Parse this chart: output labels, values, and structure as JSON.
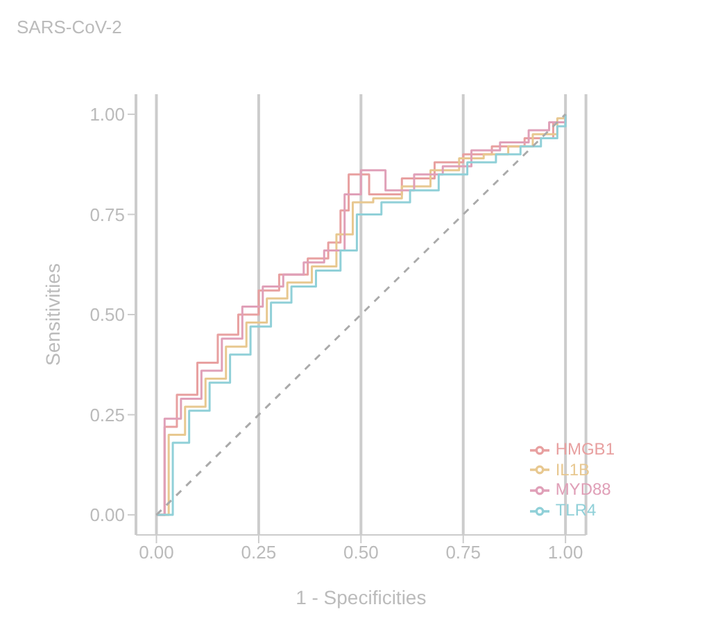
{
  "chart_data": {
    "type": "step",
    "title": "SARS-CoV-2",
    "xlabel": "1 - Specificities",
    "ylabel": "Sensitivities",
    "xlim": [
      -0.05,
      1.05
    ],
    "ylim": [
      -0.05,
      1.05
    ],
    "xticks": [
      {
        "value": 0,
        "label": "0.00"
      },
      {
        "value": 0.25,
        "label": "0.25"
      },
      {
        "value": 0.5,
        "label": "0.50"
      },
      {
        "value": 0.75,
        "label": "0.75"
      },
      {
        "value": 1,
        "label": "1.00"
      }
    ],
    "yticks": [
      {
        "value": 0,
        "label": "0.00"
      },
      {
        "value": 0.25,
        "label": "0.25"
      },
      {
        "value": 0.5,
        "label": "0.50"
      },
      {
        "value": 0.75,
        "label": "0.75"
      },
      {
        "value": 1,
        "label": "1.00"
      }
    ],
    "grid": "x",
    "legend": "bottom right",
    "marker": "none",
    "series": [
      {
        "name": "HMGB1",
        "color": "#e8a0a0",
        "x": [
          0,
          0.02,
          0.05,
          0.1,
          0.15,
          0.2,
          0.25,
          0.3,
          0.37,
          0.42,
          0.45,
          0.47,
          0.52,
          0.6,
          0.68,
          0.75,
          0.82,
          0.9,
          0.97,
          1
        ],
        "values": [
          0,
          0.22,
          0.3,
          0.38,
          0.45,
          0.5,
          0.56,
          0.6,
          0.64,
          0.68,
          0.76,
          0.85,
          0.8,
          0.84,
          0.88,
          0.9,
          0.92,
          0.94,
          0.98,
          1
        ]
      },
      {
        "name": "IL1B",
        "color": "#e8c890",
        "x": [
          0,
          0.03,
          0.07,
          0.12,
          0.17,
          0.22,
          0.27,
          0.32,
          0.38,
          0.44,
          0.48,
          0.53,
          0.6,
          0.67,
          0.74,
          0.8,
          0.86,
          0.92,
          0.98,
          1
        ],
        "values": [
          0,
          0.2,
          0.27,
          0.34,
          0.42,
          0.48,
          0.54,
          0.58,
          0.62,
          0.7,
          0.78,
          0.79,
          0.82,
          0.86,
          0.89,
          0.9,
          0.92,
          0.95,
          0.99,
          1
        ]
      },
      {
        "name": "MYD88",
        "color": "#e0a0b8",
        "x": [
          0,
          0.02,
          0.06,
          0.11,
          0.16,
          0.21,
          0.26,
          0.31,
          0.36,
          0.41,
          0.46,
          0.5,
          0.56,
          0.63,
          0.7,
          0.77,
          0.84,
          0.91,
          0.96,
          1
        ],
        "values": [
          0,
          0.24,
          0.29,
          0.36,
          0.44,
          0.52,
          0.57,
          0.6,
          0.63,
          0.66,
          0.8,
          0.86,
          0.81,
          0.85,
          0.87,
          0.91,
          0.93,
          0.96,
          0.98,
          1
        ]
      },
      {
        "name": "TLR4",
        "color": "#90d0d8",
        "x": [
          0,
          0.04,
          0.08,
          0.13,
          0.18,
          0.23,
          0.28,
          0.33,
          0.39,
          0.45,
          0.49,
          0.55,
          0.62,
          0.69,
          0.76,
          0.83,
          0.89,
          0.94,
          0.98,
          1
        ],
        "values": [
          0,
          0.18,
          0.26,
          0.33,
          0.4,
          0.47,
          0.53,
          0.57,
          0.61,
          0.66,
          0.75,
          0.78,
          0.81,
          0.85,
          0.88,
          0.9,
          0.92,
          0.94,
          0.97,
          1
        ]
      },
      {
        "type": "line",
        "line_style": "dashed",
        "color": "#aaaaaa",
        "x": [
          0,
          1
        ],
        "values": [
          0,
          1
        ]
      }
    ]
  }
}
